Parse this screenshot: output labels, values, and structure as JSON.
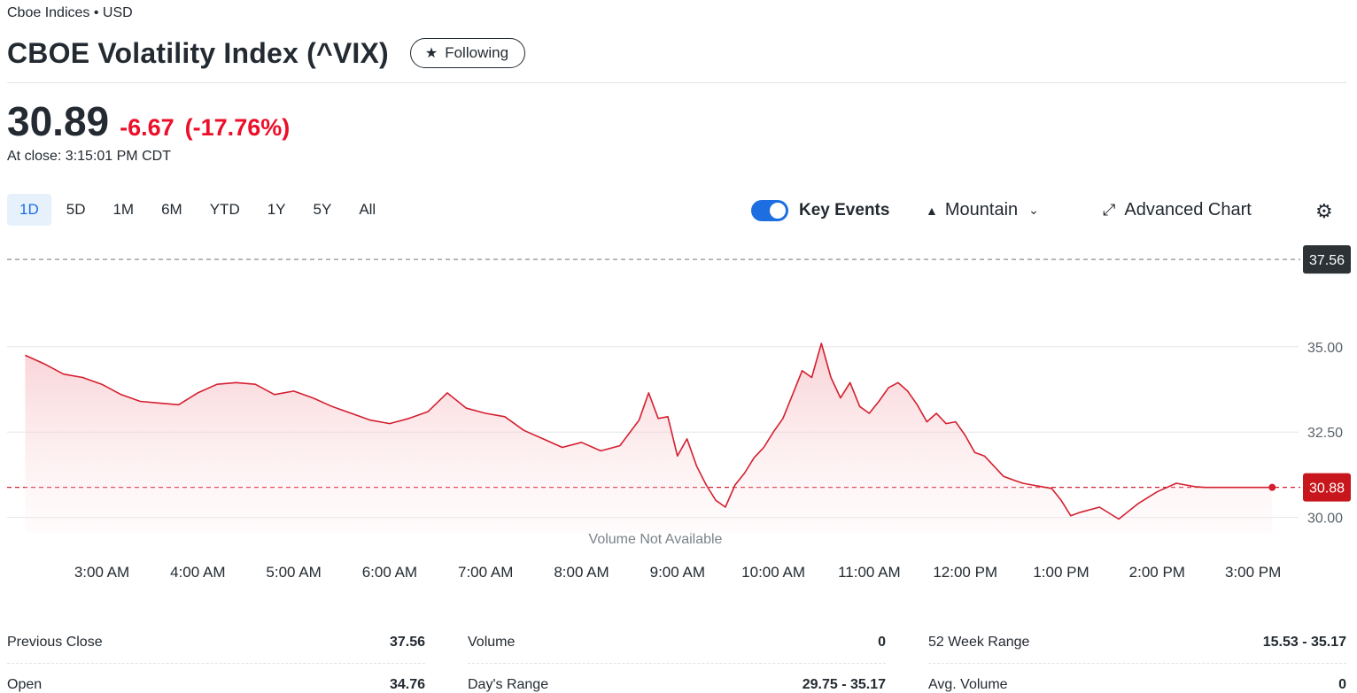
{
  "header": {
    "exchange": "Cboe Indices • USD",
    "title": "CBOE Volatility Index (^VIX)",
    "follow_label": "Following"
  },
  "quote": {
    "price": "30.89",
    "change": "-6.67",
    "change_pct": "(-17.76%)",
    "close_time": "At close: 3:15:01 PM CDT"
  },
  "toolbar": {
    "ranges": [
      "1D",
      "5D",
      "1M",
      "6M",
      "YTD",
      "1Y",
      "5Y",
      "All"
    ],
    "active_range": "1D",
    "key_events_label": "Key Events",
    "key_events_on": true,
    "chart_type_label": "Mountain",
    "advanced_chart_label": "Advanced Chart"
  },
  "colors": {
    "accent": "#1d6ee0",
    "down": "#eb0f29",
    "line": "#d41f2f",
    "label_dark": "#2c3235",
    "label_red": "#c8171c"
  },
  "chart_data": {
    "type": "area",
    "previous_close": 37.56,
    "last": 30.88,
    "ylim": [
      29.6,
      37.9
    ],
    "yticks": [
      "35.00",
      "32.50",
      "30.00"
    ],
    "ytick_values": [
      35.0,
      32.5,
      30.0
    ],
    "prev_close_label": "37.56",
    "last_label": "30.88",
    "x_labels": [
      "3:00 AM",
      "4:00 AM",
      "5:00 AM",
      "6:00 AM",
      "7:00 AM",
      "8:00 AM",
      "9:00 AM",
      "10:00 AM",
      "11:00 AM",
      "12:00 PM",
      "1:00 PM",
      "2:00 PM",
      "3:00 PM"
    ],
    "x_label_hours": [
      3,
      4,
      5,
      6,
      7,
      8,
      9,
      10,
      11,
      12,
      13,
      14,
      15
    ],
    "volume_note": "Volume Not Available",
    "series": [
      {
        "x": [
          2.2,
          2.4,
          2.6,
          2.8,
          3.0,
          3.2,
          3.4,
          3.6,
          3.8,
          4.0,
          4.2,
          4.4,
          4.6,
          4.8,
          5.0,
          5.2,
          5.4,
          5.6,
          5.8,
          6.0,
          6.2,
          6.4,
          6.6,
          6.8,
          7.0,
          7.2,
          7.4,
          7.6,
          7.8,
          8.0,
          8.2,
          8.4,
          8.6,
          8.7,
          8.8,
          8.9,
          9.0,
          9.1,
          9.2,
          9.3,
          9.4,
          9.5,
          9.6,
          9.7,
          9.8,
          9.9,
          10.0,
          10.1,
          10.2,
          10.3,
          10.4,
          10.5,
          10.6,
          10.7,
          10.8,
          10.9,
          11.0,
          11.1,
          11.2,
          11.3,
          11.4,
          11.5,
          11.6,
          11.7,
          11.8,
          11.9,
          12.0,
          12.1,
          12.2,
          12.3,
          12.4,
          12.5,
          12.6,
          12.7,
          12.8,
          12.9,
          13.0,
          13.1,
          13.2,
          13.4,
          13.6,
          13.8,
          14.0,
          14.2,
          14.3,
          14.4,
          14.5,
          14.6,
          14.7,
          14.8,
          14.9,
          15.0,
          15.1,
          15.2,
          15.3
        ],
        "y": [
          34.75,
          34.5,
          34.2,
          34.1,
          33.9,
          33.6,
          33.4,
          33.35,
          33.3,
          33.65,
          33.9,
          33.95,
          33.9,
          33.6,
          33.7,
          33.5,
          33.25,
          33.05,
          32.85,
          32.75,
          32.9,
          33.1,
          33.65,
          33.2,
          33.05,
          32.95,
          32.55,
          32.3,
          32.05,
          32.2,
          31.95,
          32.1,
          32.85,
          33.65,
          32.9,
          32.95,
          31.8,
          32.3,
          31.5,
          30.95,
          30.5,
          30.3,
          30.95,
          31.3,
          31.75,
          32.05,
          32.5,
          32.9,
          33.6,
          34.3,
          34.1,
          35.1,
          34.1,
          33.5,
          33.95,
          33.25,
          33.05,
          33.4,
          33.8,
          33.95,
          33.7,
          33.3,
          32.8,
          33.05,
          32.75,
          32.8,
          32.4,
          31.9,
          31.8,
          31.5,
          31.2,
          31.1,
          31.0,
          30.95,
          30.9,
          30.85,
          30.5,
          30.05,
          30.15,
          30.3,
          29.95,
          30.4,
          30.75,
          31.0,
          30.95,
          30.9,
          30.88,
          30.88,
          30.88,
          30.88,
          30.88,
          30.88,
          30.88,
          30.88,
          30.88
        ]
      }
    ]
  },
  "stats": {
    "col1": [
      {
        "label": "Previous Close",
        "value": "37.56"
      },
      {
        "label": "Open",
        "value": "34.76"
      }
    ],
    "col2": [
      {
        "label": "Volume",
        "value": "0"
      },
      {
        "label": "Day's Range",
        "value": "29.75 - 35.17"
      }
    ],
    "col3": [
      {
        "label": "52 Week Range",
        "value": "15.53 - 35.17"
      },
      {
        "label": "Avg. Volume",
        "value": "0"
      }
    ]
  }
}
